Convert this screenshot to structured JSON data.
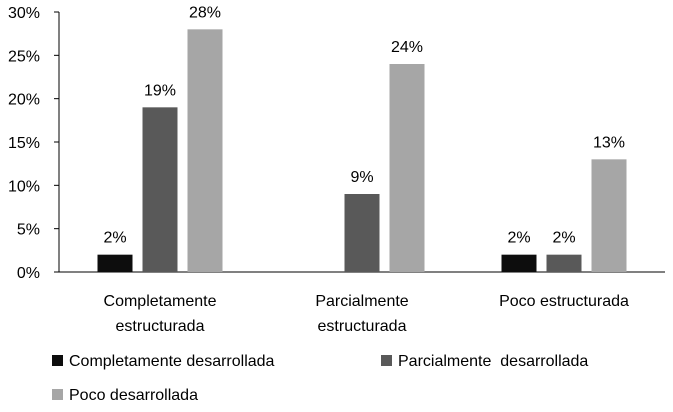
{
  "chart_data": {
    "type": "bar",
    "title": "",
    "xlabel": "",
    "ylabel": "",
    "categories": [
      [
        "Completamente",
        "estructurada"
      ],
      [
        "Parcialmente",
        "estructurada"
      ],
      [
        "Poco estructurada"
      ]
    ],
    "series": [
      {
        "name": "Completamente desarrollada",
        "color": "#0d0d0d",
        "values": [
          2,
          null,
          2
        ],
        "labels": [
          "2%",
          "",
          "2%"
        ]
      },
      {
        "name": "Parcialmente  desarrollada",
        "color": "#595959",
        "values": [
          19,
          9,
          2
        ],
        "labels": [
          "19%",
          "9%",
          "2%"
        ]
      },
      {
        "name": "Poco desarrollada",
        "color": "#a6a6a6",
        "values": [
          28,
          24,
          13
        ],
        "labels": [
          "28%",
          "24%",
          "13%"
        ]
      }
    ],
    "ylim": [
      0,
      30
    ],
    "yticks": [
      "0%",
      "5%",
      "10%",
      "15%",
      "20%",
      "25%",
      "30%"
    ],
    "grid": false,
    "legend_position": "bottom"
  }
}
